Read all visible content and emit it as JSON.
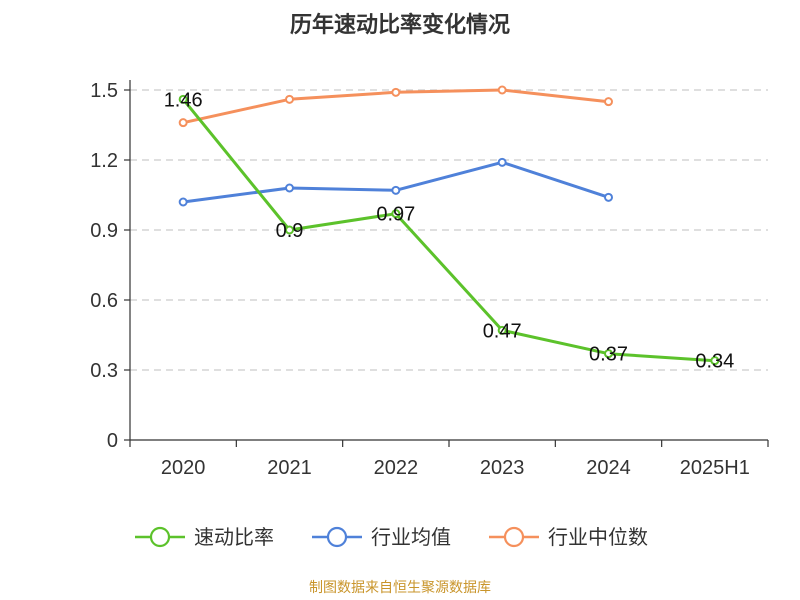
{
  "chart_data": {
    "type": "line",
    "title": "历年速动比率变化情况",
    "categories": [
      "2020",
      "2021",
      "2022",
      "2023",
      "2024",
      "2025H1"
    ],
    "yticks": [
      "0",
      "0.3",
      "0.6",
      "0.9",
      "1.2",
      "1.5"
    ],
    "ylim": [
      0,
      1.5
    ],
    "grid": true,
    "legend_position": "bottom",
    "series": [
      {
        "name": "速动比率",
        "color": "#5cc22b",
        "values": [
          1.46,
          0.9,
          0.97,
          0.47,
          0.37,
          0.34
        ],
        "labels": [
          "1.46",
          "0.9",
          "0.97",
          "0.47",
          "0.37",
          "0.34"
        ]
      },
      {
        "name": "行业均值",
        "color": "#4f81d9",
        "values": [
          1.02,
          1.08,
          1.07,
          1.19,
          1.04,
          null
        ]
      },
      {
        "name": "行业中位数",
        "color": "#f5905c",
        "values": [
          1.36,
          1.46,
          1.49,
          1.5,
          1.45,
          null
        ]
      }
    ]
  },
  "source": "制图数据来自恒生聚源数据库"
}
